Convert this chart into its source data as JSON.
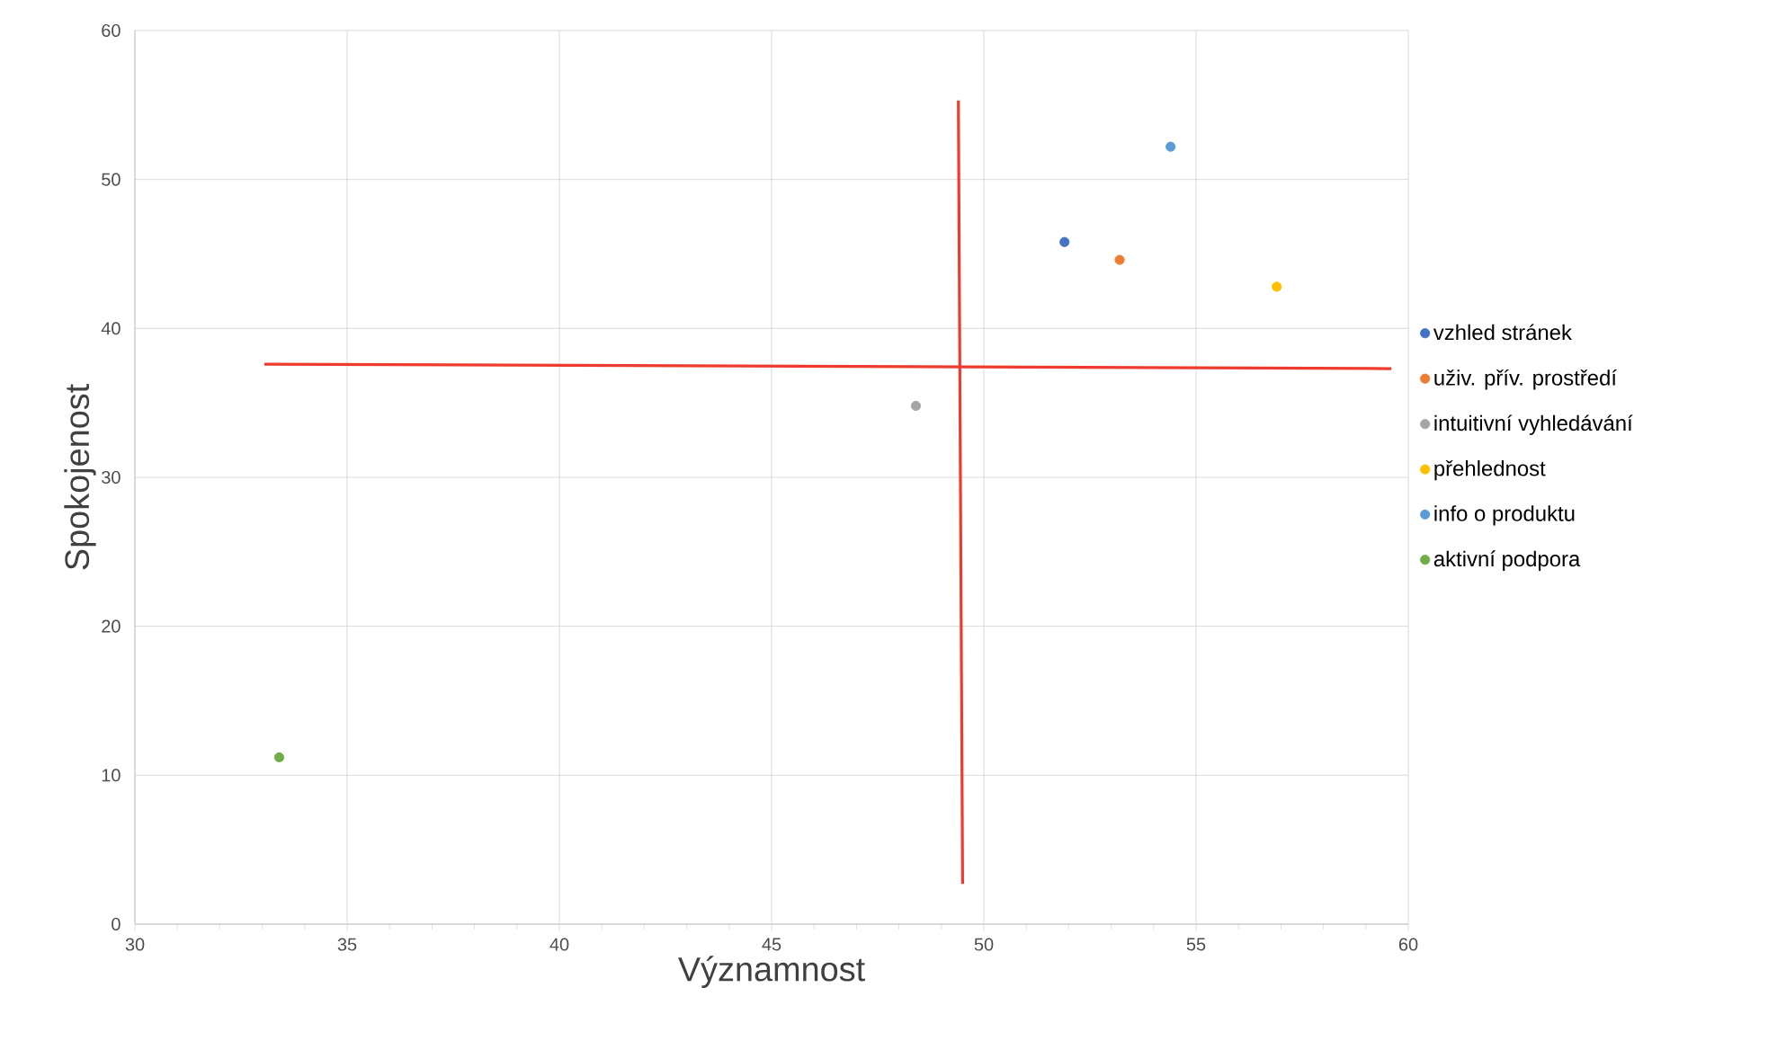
{
  "chart_data": {
    "type": "scatter",
    "xlabel": "Významnost",
    "ylabel": "Spokojenost",
    "xlim": [
      30,
      60
    ],
    "ylim": [
      0,
      60
    ],
    "xticks": [
      30,
      35,
      40,
      45,
      50,
      55,
      60
    ],
    "yticks": [
      0,
      10,
      20,
      30,
      40,
      50,
      60
    ],
    "grid": true,
    "legend": "right",
    "series": [
      {
        "name": "vzhled stránek",
        "marker": "circle",
        "color": "#4472c4",
        "x": [
          51.9
        ],
        "values": [
          45.8
        ]
      },
      {
        "name": "uživ. přív. prostředí",
        "marker": "circle",
        "color": "#ed7d31",
        "x": [
          53.2
        ],
        "values": [
          44.6
        ]
      },
      {
        "name": "intuitivní vyhledávání",
        "marker": "circle",
        "color": "#a5a5a5",
        "x": [
          48.4
        ],
        "values": [
          34.8
        ]
      },
      {
        "name": "přehlednost",
        "marker": "circle",
        "color": "#ffc000",
        "x": [
          56.9
        ],
        "values": [
          42.8
        ]
      },
      {
        "name": "info o produktu",
        "marker": "circle",
        "color": "#5b9bd5",
        "x": [
          54.4
        ],
        "values": [
          52.2
        ]
      },
      {
        "name": "aktivní podpora",
        "marker": "circle",
        "color": "#70ad47",
        "x": [
          33.4
        ],
        "values": [
          11.2
        ]
      },
      {
        "type": "line",
        "marker": "none",
        "color": "#ee3b2e",
        "x": [
          33.05,
          59.6
        ],
        "values": [
          37.6,
          37.3
        ]
      },
      {
        "type": "line",
        "marker": "none",
        "color": "#ee3b2e",
        "x": [
          49.4,
          49.5
        ],
        "values": [
          55.3,
          2.7
        ]
      }
    ]
  }
}
